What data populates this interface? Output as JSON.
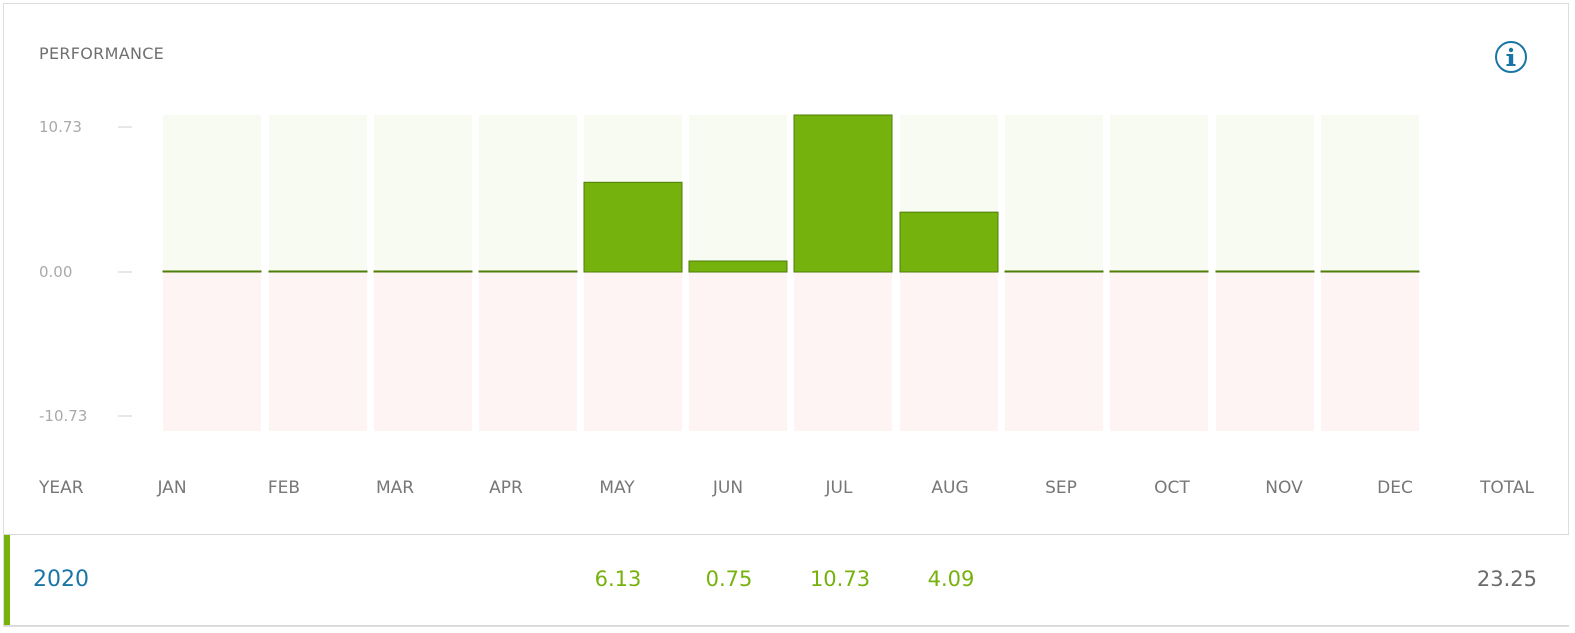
{
  "panel": {
    "title": "PERFORMANCE",
    "info_icon": "info-circle-icon",
    "colors": {
      "positive_bar": "#76b20e",
      "positive_bg": "#f7fbf2",
      "negative_bg": "#fdf4f3",
      "year_link": "#1a75a6",
      "accent": "#76b20e"
    }
  },
  "chart_data": {
    "type": "bar",
    "categories": [
      "JAN",
      "FEB",
      "MAR",
      "APR",
      "MAY",
      "JUN",
      "JUL",
      "AUG",
      "SEP",
      "OCT",
      "NOV",
      "DEC"
    ],
    "values": [
      0,
      0,
      0,
      0,
      6.13,
      0.75,
      10.73,
      4.09,
      0,
      0,
      0,
      0
    ],
    "yticks": [
      "10.73",
      "0.00",
      "-10.73"
    ],
    "ylim": [
      -10.73,
      10.73
    ],
    "grid": false,
    "legend": "none"
  },
  "table": {
    "headers": {
      "year": "YEAR",
      "months": [
        "JAN",
        "FEB",
        "MAR",
        "APR",
        "MAY",
        "JUN",
        "JUL",
        "AUG",
        "SEP",
        "OCT",
        "NOV",
        "DEC"
      ],
      "total": "TOTAL"
    },
    "rows": [
      {
        "year": "2020",
        "months": [
          "",
          "",
          "",
          "",
          "6.13",
          "0.75",
          "10.73",
          "4.09",
          "",
          "",
          "",
          ""
        ],
        "total": "23.25"
      }
    ]
  }
}
